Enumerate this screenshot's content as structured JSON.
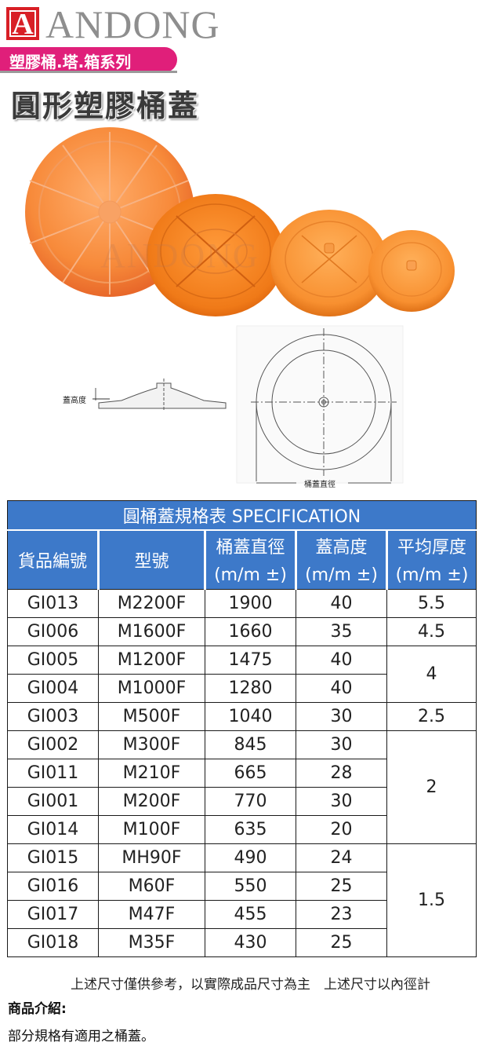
{
  "header": {
    "logo_letter": "A",
    "brand": "ANDONG",
    "series": "塑膠桶.塔.箱系列",
    "title": "圓形塑膠桶蓋"
  },
  "photo": {
    "watermark": "ANDONG"
  },
  "drawing": {
    "lid_height_label": "蓋高度",
    "diameter_label": "桶蓋直徑"
  },
  "table": {
    "title": "圓桶蓋規格表 SPECIFICATION",
    "headers": {
      "code": "貨品編號",
      "model": "型號",
      "diameter": "桶蓋直徑",
      "height": "蓋高度",
      "thickness": "平均厚度",
      "unit": "(m/m ±)"
    },
    "rows": [
      {
        "code": "GI013",
        "model": "M2200F",
        "diameter": "1900",
        "height": "40"
      },
      {
        "code": "GI006",
        "model": "M1600F",
        "diameter": "1660",
        "height": "35"
      },
      {
        "code": "GI005",
        "model": "M1200F",
        "diameter": "1475",
        "height": "40"
      },
      {
        "code": "GI004",
        "model": "M1000F",
        "diameter": "1280",
        "height": "40"
      },
      {
        "code": "GI003",
        "model": "M500F",
        "diameter": "1040",
        "height": "30"
      },
      {
        "code": "GI002",
        "model": "M300F",
        "diameter": "845",
        "height": "30"
      },
      {
        "code": "GI011",
        "model": "M210F",
        "diameter": "665",
        "height": "28"
      },
      {
        "code": "GI001",
        "model": "M200F",
        "diameter": "770",
        "height": "30"
      },
      {
        "code": "GI014",
        "model": "M100F",
        "diameter": "635",
        "height": "20"
      },
      {
        "code": "GI015",
        "model": "MH90F",
        "diameter": "490",
        "height": "24"
      },
      {
        "code": "GI016",
        "model": "M60F",
        "diameter": "550",
        "height": "25"
      },
      {
        "code": "GI017",
        "model": "M47F",
        "diameter": "455",
        "height": "23"
      },
      {
        "code": "GI018",
        "model": "M35F",
        "diameter": "430",
        "height": "25"
      }
    ],
    "thickness_groups": [
      {
        "value": "5.5"
      },
      {
        "value": "4.5"
      },
      {
        "value": "4"
      },
      {
        "value": "2.5"
      },
      {
        "value": "2"
      },
      {
        "value": "1.5"
      }
    ]
  },
  "note": "上述尺寸僅供參考，以實際成品尺寸為主　上述尺寸以內徑計",
  "intro": {
    "heading": "商品介紹:",
    "body": "部分規格有適用之桶蓋。"
  },
  "colors": {
    "logo_red": "#d81f26",
    "series_pink": "#e01f7a",
    "table_blue": "#3d79c9",
    "lid_orange": "#f57f2a"
  }
}
